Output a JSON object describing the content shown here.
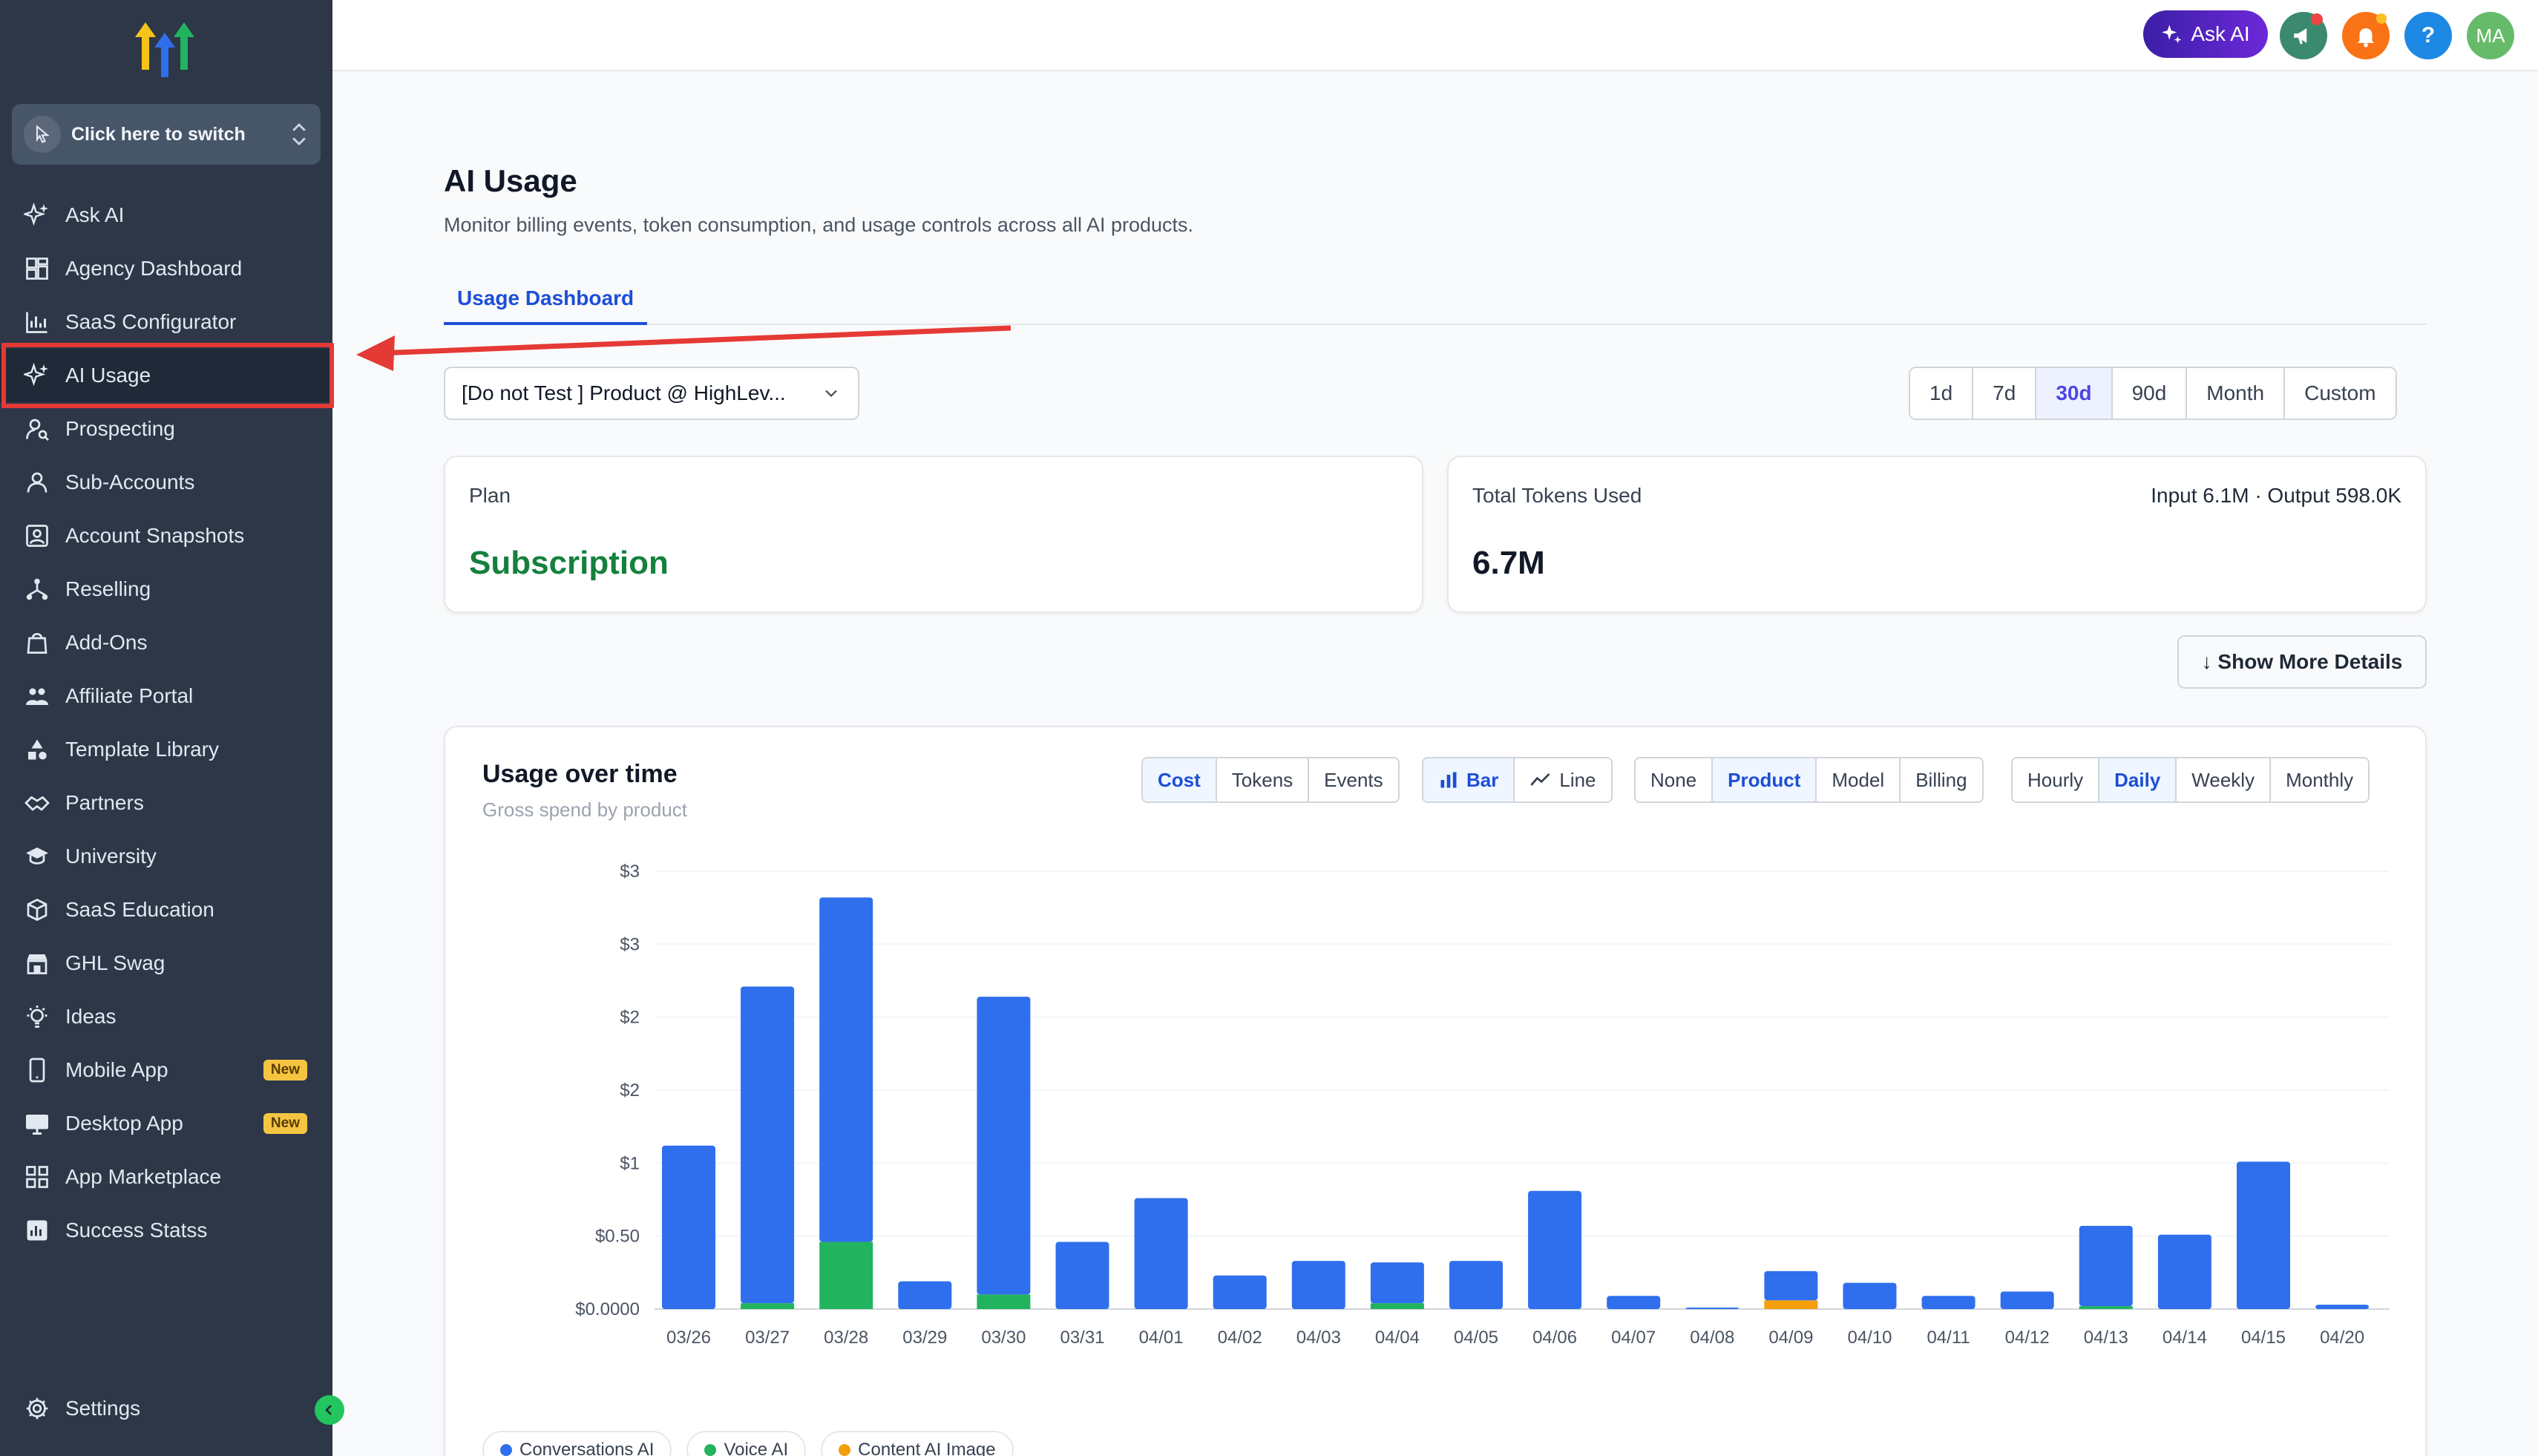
{
  "sidebar": {
    "switcher_label": "Click here to switch",
    "items": [
      {
        "label": "Ask AI",
        "icon": "sparkles-icon"
      },
      {
        "label": "Agency Dashboard",
        "icon": "dashboard-icon"
      },
      {
        "label": "SaaS Configurator",
        "icon": "chart-icon"
      },
      {
        "label": "AI Usage",
        "icon": "sparkles-icon"
      },
      {
        "label": "Prospecting",
        "icon": "user-search-icon"
      },
      {
        "label": "Sub-Accounts",
        "icon": "user-icon"
      },
      {
        "label": "Account Snapshots",
        "icon": "snapshot-icon"
      },
      {
        "label": "Reselling",
        "icon": "network-icon"
      },
      {
        "label": "Add-Ons",
        "icon": "bag-icon"
      },
      {
        "label": "Affiliate Portal",
        "icon": "people-icon"
      },
      {
        "label": "Template Library",
        "icon": "shapes-icon"
      },
      {
        "label": "Partners",
        "icon": "handshake-icon"
      },
      {
        "label": "University",
        "icon": "graduation-cap-icon"
      },
      {
        "label": "SaaS Education",
        "icon": "cube-icon"
      },
      {
        "label": "GHL Swag",
        "icon": "store-icon"
      },
      {
        "label": "Ideas",
        "icon": "lightbulb-icon"
      },
      {
        "label": "Mobile App",
        "icon": "mobile-icon",
        "badge": "New"
      },
      {
        "label": "Desktop App",
        "icon": "desktop-icon",
        "badge": "New"
      },
      {
        "label": "App Marketplace",
        "icon": "grid-icon"
      },
      {
        "label": "Success Statss",
        "icon": "stats-icon"
      }
    ],
    "settings_label": "Settings"
  },
  "topbar": {
    "ask_ai_label": "Ask AI",
    "help_label": "?",
    "avatar_initials": "MA"
  },
  "page": {
    "title": "AI Usage",
    "subtitle": "Monitor billing events, token consumption, and usage controls across all AI products.",
    "tab": "Usage Dashboard",
    "account_select_value": "[Do not Test ] Product @ HighLev...",
    "ranges": [
      "1d",
      "7d",
      "30d",
      "90d",
      "Month",
      "Custom"
    ],
    "selected_range": "30d"
  },
  "plan_card": {
    "label": "Plan",
    "value": "Subscription"
  },
  "tokens_card": {
    "label": "Total Tokens Used",
    "value": "6.7M",
    "breakdown": "Input 6.1M · Output 598.0K"
  },
  "show_more_label": "↓ Show More Details",
  "chart_panel": {
    "title": "Usage over time",
    "subtitle": "Gross spend by product",
    "metric_options": [
      "Cost",
      "Tokens",
      "Events"
    ],
    "metric_selected": "Cost",
    "view_options": [
      "Bar",
      "Line"
    ],
    "view_selected": "Bar",
    "group_options": [
      "None",
      "Product",
      "Model",
      "Billing"
    ],
    "group_selected": "Product",
    "interval_options": [
      "Hourly",
      "Daily",
      "Weekly",
      "Monthly"
    ],
    "interval_selected": "Daily"
  },
  "colors": {
    "conversations": "#2f6fed",
    "voice": "#22b35e",
    "content": "#f59e0b",
    "accent": "#1d4ed8"
  },
  "chart_data": {
    "type": "bar",
    "stacked": true,
    "categories": [
      "03/26",
      "03/27",
      "03/28",
      "03/29",
      "03/30",
      "03/31",
      "04/01",
      "04/02",
      "04/03",
      "04/04",
      "04/05",
      "04/06",
      "04/07",
      "04/08",
      "04/09",
      "04/10",
      "04/11",
      "04/12",
      "04/13",
      "04/14",
      "04/15",
      "04/20"
    ],
    "series": [
      {
        "name": "Conversations AI",
        "values": [
          1.12,
          2.17,
          2.36,
          0.19,
          2.04,
          0.46,
          0.76,
          0.23,
          0.33,
          0.28,
          0.33,
          0.81,
          0.09,
          0.01,
          0.2,
          0.18,
          0.09,
          0.12,
          0.55,
          0.51,
          1.01,
          0.03
        ]
      },
      {
        "name": "Voice AI",
        "values": [
          0.0,
          0.04,
          0.46,
          0.0,
          0.1,
          0.0,
          0.0,
          0.0,
          0.0,
          0.04,
          0.0,
          0.0,
          0.0,
          0.0,
          0.0,
          0.0,
          0.0,
          0.0,
          0.02,
          0.0,
          0.0,
          0.0
        ]
      },
      {
        "name": "Content AI Image",
        "values": [
          0,
          0,
          0,
          0,
          0,
          0,
          0,
          0,
          0,
          0,
          0,
          0,
          0,
          0,
          0.06,
          0,
          0,
          0,
          0,
          0,
          0,
          0
        ]
      }
    ],
    "y_ticks": [
      {
        "value": 0,
        "label": "$0.0000"
      },
      {
        "value": 0.5,
        "label": "$0.50"
      },
      {
        "value": 1.0,
        "label": "$1"
      },
      {
        "value": 1.5,
        "label": "$2"
      },
      {
        "value": 2.0,
        "label": "$2"
      },
      {
        "value": 2.5,
        "label": "$3"
      },
      {
        "value": 3.0,
        "label": "$3"
      }
    ],
    "ylim": [
      0,
      3.0
    ],
    "grid": "horizontal"
  }
}
